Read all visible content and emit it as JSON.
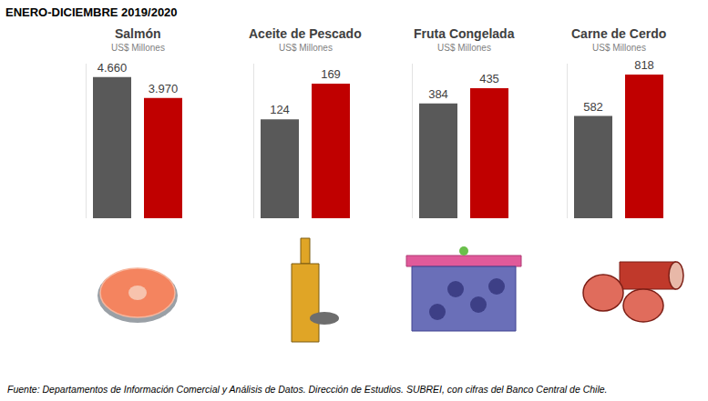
{
  "header": "ENERO-DICIEMBRE 2019/2020",
  "source": "Fuente: Departamentos de Información Comercial y Análisis de Datos. Dirección de Estudios. SUBREI, con cifras del Banco Central de Chile.",
  "chart_data": [
    {
      "type": "bar",
      "title": "Salmón",
      "subtitle": "US$ Millones",
      "categories": [
        null,
        null
      ],
      "values": [
        4660,
        3970
      ],
      "value_labels": [
        "4.660",
        "3.970"
      ],
      "colors": [
        "#595959",
        "#c00000"
      ],
      "data_labels": true,
      "tick_labels": false,
      "ylim": [
        0,
        5100
      ]
    },
    {
      "type": "bar",
      "title": "Aceite de Pescado",
      "subtitle": "US$ Millones",
      "categories": [
        null,
        null
      ],
      "values": [
        124,
        169
      ],
      "colors": [
        "#595959",
        "#c00000"
      ],
      "data_labels": true,
      "tick_labels": false,
      "ylim": [
        0,
        194
      ]
    },
    {
      "type": "bar",
      "title": "Fruta Congelada",
      "subtitle": "US$ Millones",
      "categories": [
        null,
        null
      ],
      "values": [
        384,
        435
      ],
      "colors": [
        "#595959",
        "#c00000"
      ],
      "data_labels": true,
      "tick_labels": false,
      "ylim": [
        0,
        517
      ]
    },
    {
      "type": "bar",
      "title": "Carne de Cerdo",
      "subtitle": "US$ Millones",
      "categories": [
        null,
        null
      ],
      "values": [
        582,
        818
      ],
      "colors": [
        "#595959",
        "#c00000"
      ],
      "data_labels": true,
      "tick_labels": false,
      "ylim": [
        0,
        880
      ]
    }
  ]
}
